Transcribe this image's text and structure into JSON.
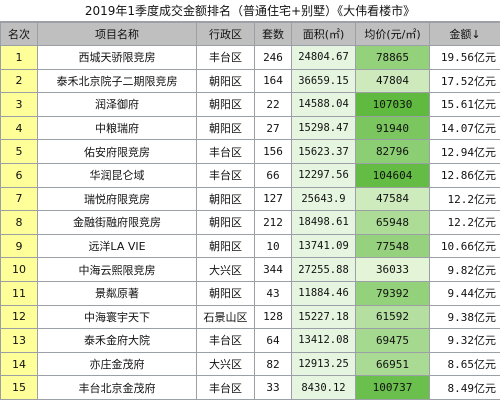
{
  "title": "2019年1季度成交金额排名（普通住宅+别墅）《大伟看楼市》",
  "headers": {
    "rank": "名次",
    "name": "项目名称",
    "district": "行政区",
    "units": "套数",
    "area": "面积(㎡)",
    "price": "均价(元/㎡)",
    "amount": "金额↓"
  },
  "colors": {
    "header_bg": "#bfbfbf",
    "rank_bg": "#ffff99",
    "area_bg": "#e6f5e0",
    "price_scale_light": "#e4f4d6",
    "price_scale_dark": "#5fba3f"
  },
  "rows": [
    {
      "rank": "1",
      "name": "西城天骄限竞房",
      "district": "丰台区",
      "units": "246",
      "area": "24804.67",
      "price": "78865",
      "amount": "19.56亿元"
    },
    {
      "rank": "2",
      "name": "泰禾北京院子二期限竞房",
      "district": "朝阳区",
      "units": "164",
      "area": "36659.15",
      "price": "47804",
      "amount": "17.52亿元"
    },
    {
      "rank": "3",
      "name": "润泽御府",
      "district": "朝阳区",
      "units": "22",
      "area": "14588.04",
      "price": "107030",
      "amount": "15.61亿元"
    },
    {
      "rank": "4",
      "name": "中粮瑞府",
      "district": "朝阳区",
      "units": "27",
      "area": "15298.47",
      "price": "91940",
      "amount": "14.07亿元"
    },
    {
      "rank": "5",
      "name": "佑安府限竞房",
      "district": "丰台区",
      "units": "156",
      "area": "15623.37",
      "price": "82796",
      "amount": "12.94亿元"
    },
    {
      "rank": "6",
      "name": "华润昆仑域",
      "district": "丰台区",
      "units": "66",
      "area": "12297.56",
      "price": "104604",
      "amount": "12.86亿元"
    },
    {
      "rank": "7",
      "name": "瑞悦府限竞房",
      "district": "朝阳区",
      "units": "127",
      "area": "25643.9",
      "price": "47584",
      "amount": "12.2亿元"
    },
    {
      "rank": "8",
      "name": "金融街融府限竞房",
      "district": "朝阳区",
      "units": "212",
      "area": "18498.61",
      "price": "65948",
      "amount": "12.2亿元"
    },
    {
      "rank": "9",
      "name": "远洋LA VIE",
      "district": "朝阳区",
      "units": "10",
      "area": "13741.09",
      "price": "77548",
      "amount": "10.66亿元"
    },
    {
      "rank": "10",
      "name": "中海云熙限竞房",
      "district": "大兴区",
      "units": "344",
      "area": "27255.88",
      "price": "36033",
      "amount": "9.82亿元"
    },
    {
      "rank": "11",
      "name": "景粼原著",
      "district": "朝阳区",
      "units": "43",
      "area": "11884.46",
      "price": "79392",
      "amount": "9.44亿元"
    },
    {
      "rank": "12",
      "name": "中海寰宇天下",
      "district": "石景山区",
      "units": "128",
      "area": "15227.18",
      "price": "61592",
      "amount": "9.38亿元"
    },
    {
      "rank": "13",
      "name": "泰禾金府大院",
      "district": "丰台区",
      "units": "64",
      "area": "13412.08",
      "price": "69475",
      "amount": "9.32亿元"
    },
    {
      "rank": "14",
      "name": "亦庄金茂府",
      "district": "大兴区",
      "units": "82",
      "area": "12913.25",
      "price": "66951",
      "amount": "8.65亿元"
    },
    {
      "rank": "15",
      "name": "丰台北京金茂府",
      "district": "丰台区",
      "units": "33",
      "area": "8430.12",
      "price": "100737",
      "amount": "8.49亿元"
    }
  ]
}
